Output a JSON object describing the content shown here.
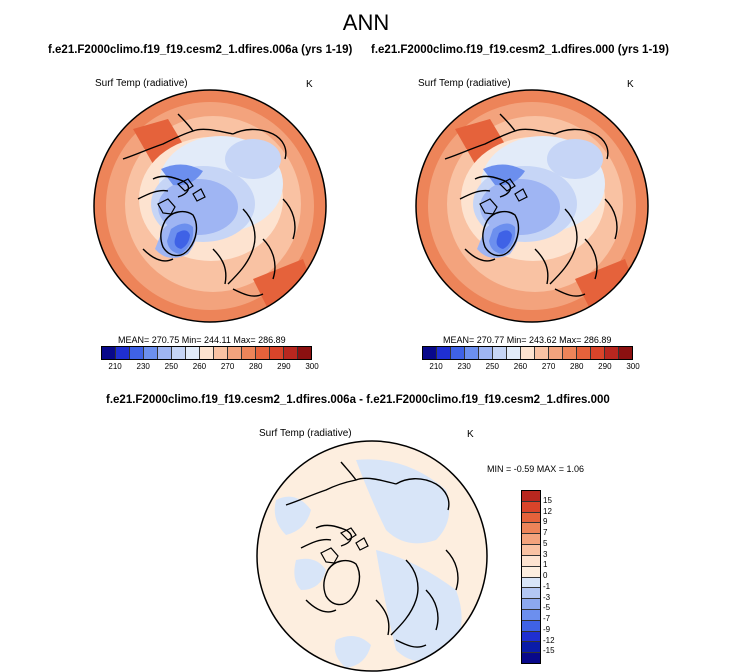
{
  "title": "ANN",
  "panels": {
    "left": {
      "case": "f.e21.F2000climo.f19_f19.cesm2_1.dfires.006a (yrs 1-19)",
      "variable": "Surf Temp (radiative)",
      "units": "K",
      "stats": "MEAN= 270.75   Min= 244.11   Max= 286.89"
    },
    "right": {
      "case": "f.e21.F2000climo.f19_f19.cesm2_1.dfires.000 (yrs 1-19)",
      "variable": "Surf Temp (radiative)",
      "units": "K",
      "stats": "MEAN= 270.77   Min= 243.62   Max= 286.89"
    },
    "diff": {
      "case": "f.e21.F2000climo.f19_f19.cesm2_1.dfires.006a - f.e21.F2000climo.f19_f19.cesm2_1.dfires.000",
      "variable": "Surf Temp (radiative)",
      "units": "K",
      "stats": "MIN =  -0.59 MAX =   1.06"
    }
  },
  "colorbar_abs": {
    "labels": [
      "210",
      "230",
      "250",
      "260",
      "270",
      "280",
      "290",
      "300"
    ],
    "colors": [
      "#08088a",
      "#1f2fd1",
      "#3f62e6",
      "#6c8fee",
      "#9fb5f3",
      "#c6d5f6",
      "#e2ebf9",
      "#fde3d0",
      "#f9c2a3",
      "#f3a37d",
      "#ed8459",
      "#e5623b",
      "#d9442a",
      "#b8271f",
      "#8b1010"
    ]
  },
  "colorbar_diff": {
    "labels": [
      "15",
      "12",
      "9",
      "7",
      "5",
      "3",
      "1",
      "0",
      "-1",
      "-3",
      "-5",
      "-7",
      "-9",
      "-12",
      "-15"
    ],
    "colors": [
      "#b8271f",
      "#d9442a",
      "#e5623b",
      "#ed8459",
      "#f3a37d",
      "#f9c2a3",
      "#fde3d0",
      "#fdeedf",
      "#d8e5f8",
      "#b3c7f3",
      "#8ca8ee",
      "#6c8fee",
      "#3f62e6",
      "#1f2fd1",
      "#0a1ca8",
      "#08088a"
    ]
  },
  "chart_data": [
    {
      "type": "heatmap",
      "title": "Surf Temp (radiative)",
      "subtitle": "f.e21.F2000climo.f19_f19.cesm2_1.dfires.006a (yrs 1-19)",
      "units": "K",
      "projection": "north polar stereographic",
      "mean": 270.75,
      "min": 244.11,
      "max": 286.89,
      "color_levels": [
        210,
        230,
        250,
        260,
        270,
        280,
        290,
        300
      ]
    },
    {
      "type": "heatmap",
      "title": "Surf Temp (radiative)",
      "subtitle": "f.e21.F2000climo.f19_f19.cesm2_1.dfires.000 (yrs 1-19)",
      "units": "K",
      "projection": "north polar stereographic",
      "mean": 270.77,
      "min": 243.62,
      "max": 286.89,
      "color_levels": [
        210,
        230,
        250,
        260,
        270,
        280,
        290,
        300
      ]
    },
    {
      "type": "heatmap",
      "title": "Surf Temp (radiative)",
      "subtitle": "f.e21.F2000climo.f19_f19.cesm2_1.dfires.006a - f.e21.F2000climo.f19_f19.cesm2_1.dfires.000",
      "units": "K",
      "projection": "north polar stereographic",
      "min": -0.59,
      "max": 1.06,
      "color_levels": [
        15,
        12,
        9,
        7,
        5,
        3,
        1,
        0,
        -1,
        -3,
        -5,
        -7,
        -9,
        -12,
        -15
      ]
    }
  ]
}
